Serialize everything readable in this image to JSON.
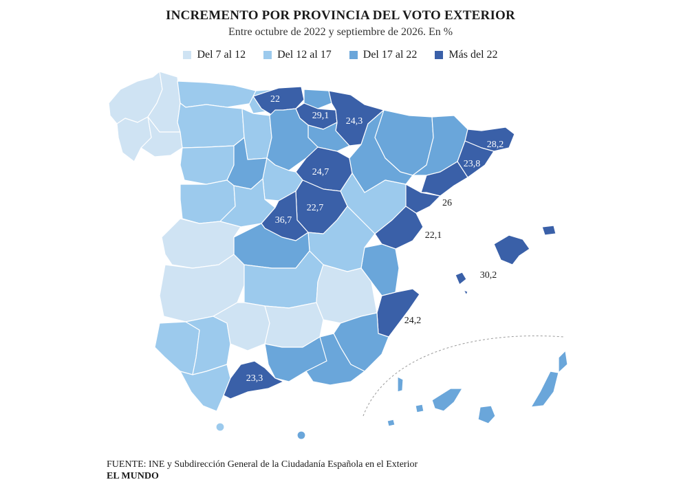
{
  "header": {
    "title": "INCREMENTO POR PROVINCIA DEL VOTO EXTERIOR",
    "subtitle": "Entre octubre de 2022 y septiembre de 2026. En %"
  },
  "legend": [
    {
      "label": "Del 7 al 12",
      "color": "#cfe3f3"
    },
    {
      "label": "Del 12 al 17",
      "color": "#9ccaed"
    },
    {
      "label": "Del 17 al 22",
      "color": "#6aa6da"
    },
    {
      "label": "Más del 22",
      "color": "#3a60a8"
    }
  ],
  "labels": {
    "bizkaia": "22",
    "alava": "29,1",
    "navarra": "24,3",
    "barcelona_girona": "28,2",
    "tarragona": "23,8",
    "soria": "24,7",
    "guadalajara": "22,7",
    "madrid": "36,7",
    "castellon": "26",
    "valencia": "22,1",
    "baleares": "30,2",
    "alicante": "24,2",
    "malaga": "23,3"
  },
  "footer": {
    "source": "FUENTE: INE y Subdirección General de la Ciudadanía Española en el Exterior",
    "brand": "EL MUNDO"
  }
}
